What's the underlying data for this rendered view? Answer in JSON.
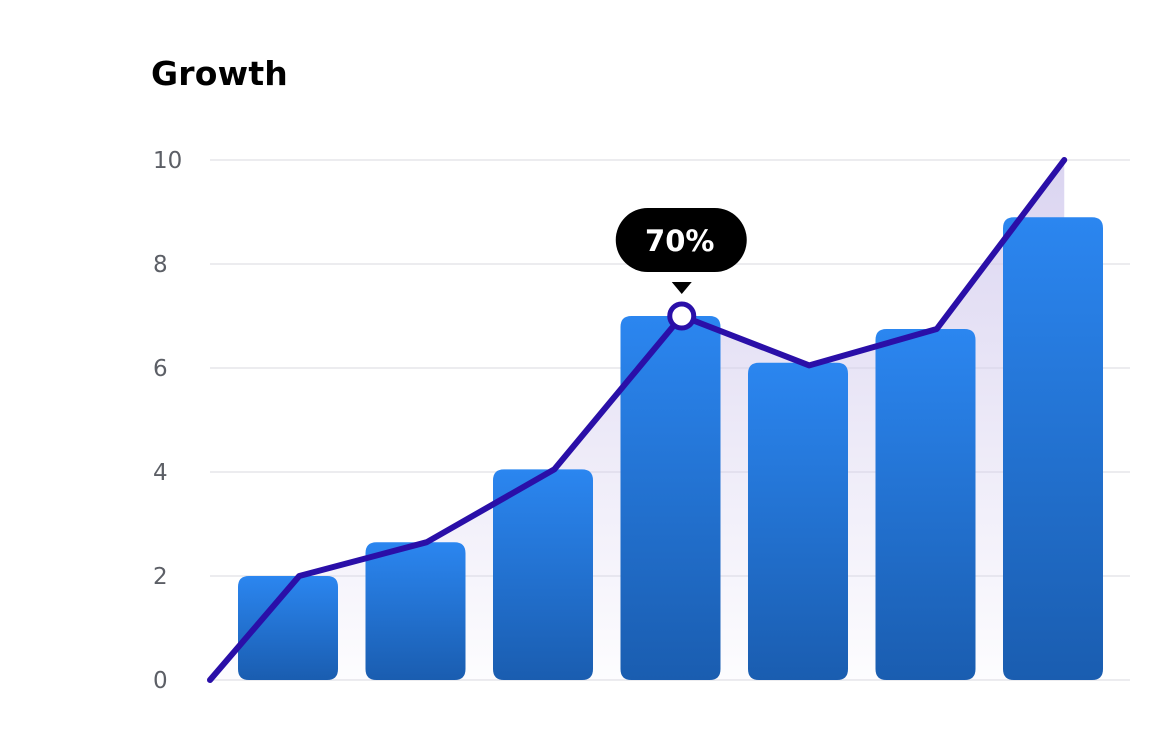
{
  "chart_data": {
    "type": "bar",
    "title": "Growth",
    "xlabel": "",
    "ylabel": "",
    "ylim": [
      0,
      10
    ],
    "y_ticks": [
      "0",
      "2",
      "4",
      "6",
      "8",
      "10"
    ],
    "grid": true,
    "bars": {
      "values": [
        2.0,
        2.65,
        4.05,
        7.0,
        6.1,
        6.75,
        8.9
      ],
      "color_top": "#2b86f0",
      "color_bottom": "#1a5db0"
    },
    "line": {
      "points": [
        {
          "x": 0,
          "y": 0
        },
        {
          "x": 0.7,
          "y": 2.0
        },
        {
          "x": 1.7,
          "y": 2.65
        },
        {
          "x": 2.7,
          "y": 4.05
        },
        {
          "x": 3.7,
          "y": 7.0
        },
        {
          "x": 4.7,
          "y": 6.05
        },
        {
          "x": 5.7,
          "y": 6.75
        },
        {
          "x": 6.7,
          "y": 10.0
        }
      ],
      "color": "#2a0fa8",
      "area_color": "#d4cdee"
    },
    "annotation": {
      "text": "70%",
      "point_index": 4
    }
  }
}
